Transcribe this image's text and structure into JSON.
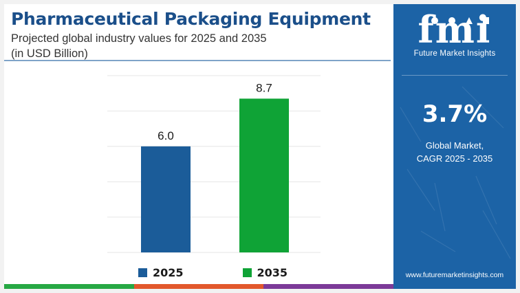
{
  "header": {
    "title": "Pharmaceutical Packaging Equipment",
    "subtitle": "Projected global industry values for 2025 and 2035",
    "unit": "(in USD Billion)"
  },
  "chart_data": {
    "type": "bar",
    "categories": [
      "2025",
      "2035"
    ],
    "values": [
      6.0,
      8.7
    ],
    "value_labels": [
      "6.0",
      "8.7"
    ],
    "colors": [
      "#1b5c99",
      "#0fa336"
    ],
    "ylim": [
      0,
      10
    ],
    "grid": true,
    "legend": {
      "position": "bottom",
      "entries": [
        {
          "label": "2025",
          "color": "#1b5c99"
        },
        {
          "label": "2035",
          "color": "#0fa336"
        }
      ]
    }
  },
  "sidebar": {
    "logo_text": "fmi",
    "logo_subtitle": "Future Market Insights",
    "cagr_value": "3.7%",
    "cagr_label_line1": "Global Market,",
    "cagr_label_line2": "CAGR 2025 - 2035",
    "website": "www.futuremarketinsights.com",
    "background_color": "#1c63a6"
  },
  "bottom_bar_colors": [
    "#27a844",
    "#e2582c",
    "#7c3a98"
  ]
}
